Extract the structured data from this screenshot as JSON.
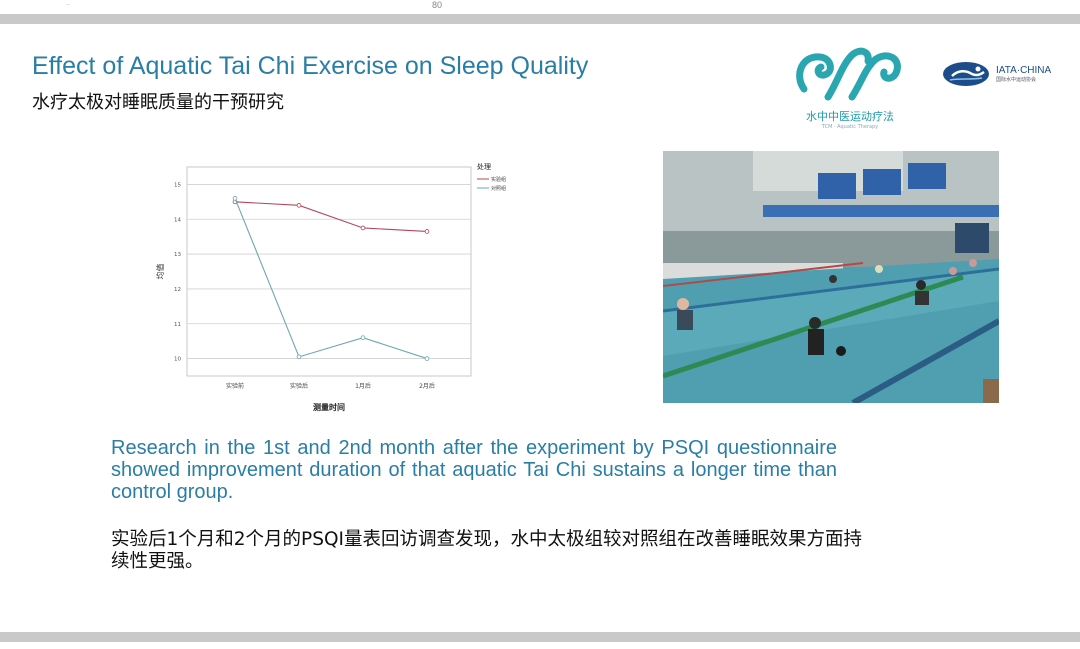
{
  "page": {
    "number": "80",
    "corner_mark": "··"
  },
  "slide": {
    "title_en": "Effect of Aquatic Tai Chi Exercise on Sleep Quality",
    "title_zh": "水疗太极对睡眠质量的干预研究",
    "paragraph_en": "Research in the 1st and 2nd month after the experiment by PSQI questionnaire showed improvement duration of that aquatic Tai Chi sustains a longer time than control group.",
    "paragraph_zh": "实验后1个月和2个月的PSQI量表回访调查发现，水中太极组较对照组在改善睡眠效果方面持续性更强。"
  },
  "logos": {
    "left": {
      "caption": "水中中医运动疗法",
      "subcaption": "TCM · Aquatic Therapy"
    },
    "right": {
      "name": "IATA·CHINA",
      "subtitle": "国际水中运动协会"
    }
  },
  "colors": {
    "accent": "#2a7ea6",
    "series_red": "#b2485a",
    "series_teal": "#6fa7b4"
  },
  "chart_data": {
    "type": "line",
    "ylabel": "均值",
    "xlabel": "测量时间",
    "categories": [
      "实验前",
      "实验后",
      "1月后",
      "2月后"
    ],
    "yticks": [
      "10",
      "11",
      "12",
      "13",
      "14",
      "15"
    ],
    "ylim": [
      9.5,
      15.5
    ],
    "legend_title": "处理",
    "legend_position": "top-right",
    "grid": true,
    "series": [
      {
        "name": "实验组",
        "values": [
          14.5,
          14.4,
          13.75,
          13.65
        ]
      },
      {
        "name": "对照组",
        "values": [
          14.6,
          10.05,
          10.6,
          10
        ]
      }
    ]
  },
  "photo": {
    "icon": "pool-photo"
  }
}
